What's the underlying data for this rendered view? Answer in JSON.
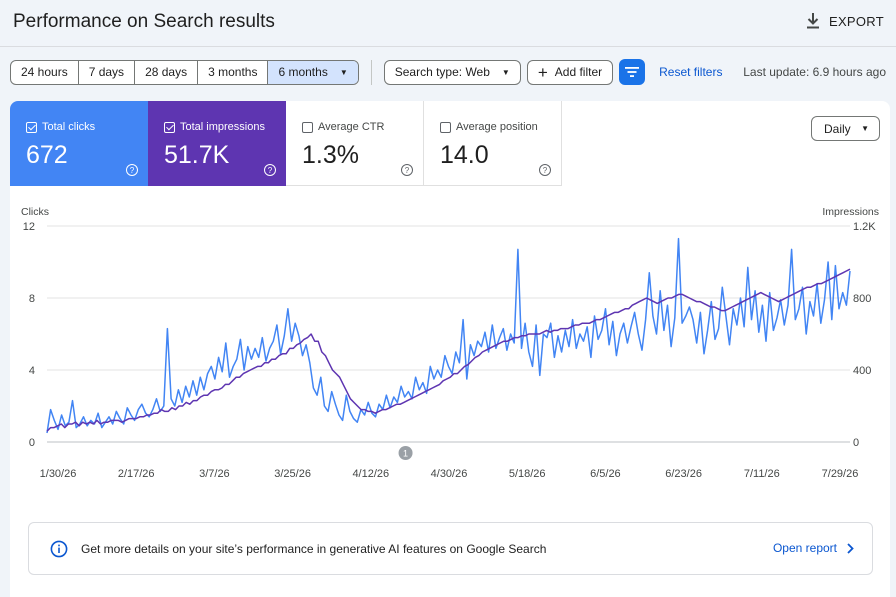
{
  "header": {
    "title": "Performance on Search results",
    "export_label": "EXPORT"
  },
  "filters": {
    "ranges": [
      "24 hours",
      "7 days",
      "28 days",
      "3 months",
      "6 months"
    ],
    "active_range": "6 months",
    "search_type": "Search type: Web",
    "add_filter": "Add filter",
    "reset": "Reset filters",
    "last_update": "Last update: 6.9 hours ago"
  },
  "metrics": [
    {
      "label": "Total clicks",
      "value": "672",
      "checked": true
    },
    {
      "label": "Total impressions",
      "value": "51.7K",
      "checked": true
    },
    {
      "label": "Average CTR",
      "value": "1.3%",
      "checked": false
    },
    {
      "label": "Average position",
      "value": "14.0",
      "checked": false
    }
  ],
  "granularity": "Daily",
  "colors": {
    "clicks": "#4285f4",
    "impressions": "#5e35b1",
    "accent": "#0b57d0"
  },
  "chart_data": {
    "type": "line",
    "left_axis": {
      "label": "Clicks",
      "ticks": [
        "12",
        "8",
        "4",
        "0"
      ],
      "range": [
        0,
        12
      ]
    },
    "right_axis": {
      "label": "Impressions",
      "ticks": [
        "1.2K",
        "800",
        "400",
        "0"
      ],
      "range": [
        0,
        1200
      ]
    },
    "x_ticks": [
      "1/30/26",
      "2/17/26",
      "3/7/26",
      "3/25/26",
      "4/12/26",
      "4/30/26",
      "5/18/26",
      "6/5/26",
      "6/23/26",
      "7/11/26",
      "7/29/26"
    ],
    "annotation": "1",
    "annotation_date": "4/20/26",
    "start_date": "1/30/26",
    "end_date": "7/29/26",
    "series": [
      {
        "name": "Clicks",
        "axis": "left",
        "color": "#4285f4",
        "values": [
          0.5,
          1.8,
          1.2,
          0.7,
          1.5,
          0.9,
          1.1,
          2.3,
          0.8,
          1.0,
          1.4,
          0.9,
          1.2,
          1.0,
          1.6,
          0.8,
          1.1,
          1.4,
          1.0,
          1.7,
          1.3,
          1.0,
          1.9,
          1.5,
          1.2,
          1.8,
          2.1,
          1.6,
          1.4,
          1.8,
          2.4,
          1.7,
          2.0,
          6.3,
          2.4,
          2.0,
          2.9,
          2.2,
          3.1,
          2.5,
          3.4,
          2.6,
          3.6,
          2.9,
          3.8,
          4.2,
          3.5,
          4.7,
          3.9,
          5.5,
          3.6,
          4.2,
          4.6,
          5.7,
          4.0,
          5.3,
          4.6,
          5.2,
          4.7,
          5.8,
          4.5,
          5.2,
          5.6,
          6.5,
          4.9,
          5.9,
          7.4,
          5.6,
          6.6,
          5.9,
          4.8,
          5.4,
          4.4,
          3.0,
          2.6,
          3.6,
          2.0,
          1.7,
          2.8,
          2.1,
          1.5,
          1.2,
          2.6,
          1.7,
          1.3,
          1.1,
          1.8,
          1.5,
          2.2,
          1.6,
          1.4,
          2.1,
          1.8,
          2.6,
          1.9,
          2.5,
          2.2,
          3.1,
          2.5,
          2.8,
          2.4,
          3.6,
          2.9,
          3.3,
          2.7,
          4.2,
          3.5,
          4.0,
          3.6,
          4.8,
          4.2,
          3.8,
          5.0,
          4.4,
          6.8,
          3.5,
          5.4,
          4.8,
          5.6,
          5.3,
          6.1,
          5.0,
          6.5,
          5.2,
          5.8,
          6.3,
          5.1,
          6.0,
          5.5,
          10.7,
          5.2,
          6.6,
          5.0,
          4.2,
          6.5,
          3.7,
          6.0,
          5.8,
          6.6,
          4.7,
          5.9,
          5.0,
          6.2,
          5.3,
          6.8,
          5.2,
          6.0,
          5.6,
          6.4,
          4.7,
          7.0,
          5.7,
          6.2,
          7.4,
          5.4,
          6.7,
          4.8,
          6.0,
          6.6,
          5.5,
          6.4,
          7.2,
          6.0,
          5.1,
          6.8,
          9.4,
          7.0,
          6.0,
          8.4,
          6.2,
          7.6,
          5.3,
          6.9,
          11.3,
          6.6,
          7.0,
          7.5,
          6.8,
          5.5,
          7.2,
          4.9,
          6.2,
          7.8,
          5.7,
          6.3,
          8.6,
          7.0,
          5.4,
          7.4,
          6.5,
          8.0,
          6.4,
          9.7,
          6.8,
          8.4,
          6.1,
          7.6,
          5.6,
          8.3,
          6.2,
          6.9,
          7.9,
          6.5,
          7.6,
          10.7,
          6.8,
          7.4,
          8.6,
          6.0,
          7.8,
          7.0,
          8.8,
          6.6,
          7.9,
          10.0,
          6.8,
          9.8,
          7.4,
          8.3,
          7.6,
          9.5
        ]
      },
      {
        "name": "Impressions",
        "axis": "right",
        "color": "#5e35b1",
        "values": [
          60,
          80,
          80,
          90,
          100,
          80,
          100,
          100,
          110,
          90,
          110,
          100,
          110,
          100,
          120,
          100,
          110,
          110,
          120,
          120,
          120,
          110,
          120,
          130,
          130,
          130,
          140,
          140,
          150,
          150,
          160,
          160,
          180,
          170,
          170,
          190,
          180,
          200,
          200,
          220,
          210,
          230,
          230,
          250,
          260,
          260,
          280,
          290,
          290,
          300,
          320,
          320,
          340,
          360,
          360,
          380,
          390,
          400,
          410,
          420,
          420,
          440,
          440,
          460,
          460,
          480,
          490,
          490,
          520,
          520,
          540,
          550,
          570,
          580,
          600,
          560,
          560,
          500,
          480,
          440,
          400,
          380,
          360,
          320,
          280,
          240,
          220,
          200,
          180,
          180,
          170,
          170,
          160,
          170,
          180,
          180,
          190,
          200,
          210,
          210,
          220,
          230,
          240,
          250,
          260,
          270,
          280,
          290,
          300,
          310,
          320,
          340,
          350,
          360,
          380,
          380,
          400,
          420,
          430,
          450,
          470,
          480,
          500,
          510,
          520,
          530,
          540,
          550,
          560,
          560,
          570,
          580,
          580,
          590,
          590,
          600,
          600,
          600,
          600,
          610,
          620,
          610,
          620,
          620,
          630,
          630,
          630,
          640,
          650,
          650,
          660,
          660,
          660,
          670,
          680,
          680,
          690,
          700,
          710,
          720,
          720,
          730,
          740,
          740,
          760,
          770,
          780,
          790,
          800,
          790,
          780,
          770,
          780,
          790,
          800,
          800,
          810,
          820,
          820,
          810,
          800,
          790,
          780,
          780,
          770,
          760,
          750,
          750,
          740,
          730,
          730,
          740,
          750,
          760,
          770,
          780,
          790,
          800,
          810,
          820,
          830,
          820,
          810,
          800,
          790,
          780,
          790,
          800,
          810,
          820,
          830,
          840,
          850,
          860,
          860,
          870,
          880,
          880,
          890,
          900,
          910,
          920,
          930,
          940,
          950,
          960
        ]
      }
    ]
  },
  "ai_banner": {
    "text": "Get more details on your site’s performance in generative AI features on Google Search",
    "link": "Open report"
  }
}
